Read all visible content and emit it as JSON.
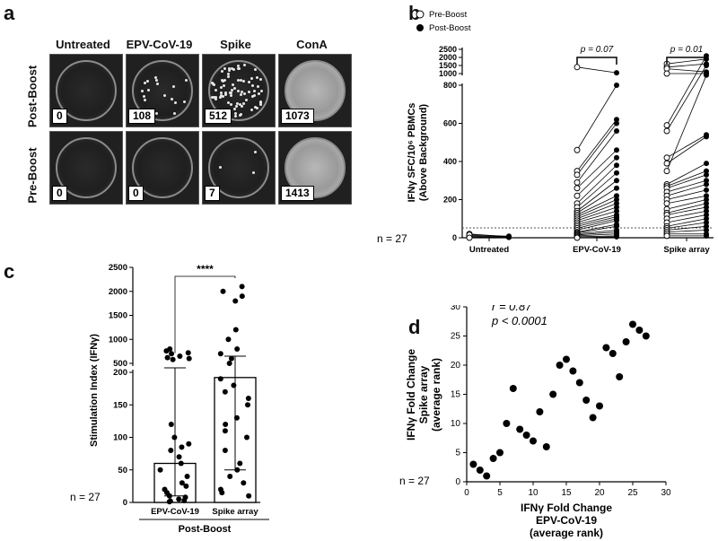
{
  "panel_labels": {
    "a": "a",
    "b": "b",
    "c": "c",
    "d": "d"
  },
  "panel_a": {
    "columns": [
      "Untreated",
      "EPV-CoV-19",
      "Spike",
      "ConA"
    ],
    "rows": [
      "Post-Boost",
      "Pre-Boost"
    ],
    "counts": [
      [
        "0",
        "108",
        "512",
        "1073"
      ],
      [
        "0",
        "0",
        "7",
        "1413"
      ]
    ],
    "spot_density": [
      [
        0,
        0.12,
        0.55,
        1.0
      ],
      [
        0,
        0,
        0.02,
        1.0
      ]
    ]
  },
  "chart_data": [
    {
      "panel": "b",
      "type": "line",
      "ylabel": "IFNγ SFC/10⁶ PBMCs (Above Background)",
      "legend": [
        "Pre-Boost",
        "Post-Boost"
      ],
      "legend_position": "top-left",
      "categories": [
        "Untreated",
        "EPV-CoV-19",
        "Spike array"
      ],
      "yticks_lower": [
        "0",
        "200",
        "400",
        "600",
        "800"
      ],
      "yticks_upper": [
        "1000",
        "1500",
        "2000",
        "2500"
      ],
      "annotations": [
        {
          "between": "EPV-CoV-19",
          "text": "p = 0.07"
        },
        {
          "between": "Spike array",
          "text": "p = 0.01"
        }
      ],
      "n_label": "n = 27",
      "untreated_pairs": [
        [
          20,
          5
        ],
        [
          10,
          5
        ],
        [
          5,
          3
        ],
        [
          15,
          8
        ],
        [
          0,
          2
        ]
      ],
      "epv_pairs": [
        [
          1400,
          1050
        ],
        [
          460,
          800
        ],
        [
          350,
          620
        ],
        [
          330,
          600
        ],
        [
          290,
          560
        ],
        [
          260,
          460
        ],
        [
          220,
          420
        ],
        [
          180,
          380
        ],
        [
          160,
          340
        ],
        [
          140,
          300
        ],
        [
          130,
          260
        ],
        [
          120,
          220
        ],
        [
          110,
          200
        ],
        [
          100,
          180
        ],
        [
          90,
          160
        ],
        [
          80,
          140
        ],
        [
          70,
          120
        ],
        [
          60,
          110
        ],
        [
          50,
          100
        ],
        [
          40,
          90
        ],
        [
          30,
          70
        ],
        [
          25,
          60
        ],
        [
          20,
          40
        ],
        [
          15,
          30
        ],
        [
          10,
          20
        ],
        [
          5,
          10
        ],
        [
          0,
          5
        ]
      ],
      "spike_pairs": [
        [
          1600,
          1900
        ],
        [
          1400,
          1600
        ],
        [
          1300,
          1100
        ],
        [
          1000,
          1000
        ],
        [
          590,
          2100
        ],
        [
          560,
          1500
        ],
        [
          420,
          540
        ],
        [
          390,
          530
        ],
        [
          350,
          900
        ],
        [
          280,
          390
        ],
        [
          270,
          350
        ],
        [
          260,
          330
        ],
        [
          240,
          300
        ],
        [
          220,
          280
        ],
        [
          200,
          250
        ],
        [
          180,
          220
        ],
        [
          150,
          200
        ],
        [
          130,
          180
        ],
        [
          120,
          160
        ],
        [
          100,
          140
        ],
        [
          80,
          120
        ],
        [
          60,
          100
        ],
        [
          50,
          80
        ],
        [
          40,
          60
        ],
        [
          30,
          40
        ],
        [
          20,
          20
        ],
        [
          10,
          10
        ]
      ]
    },
    {
      "panel": "c",
      "type": "bar",
      "ylabel": "Stimulation Index (IFNγ)",
      "categories": [
        "EPV-CoV-19",
        "Spike array"
      ],
      "group_label": "Post-Boost",
      "values": [
        60,
        192
      ],
      "yticks_lower": [
        "0",
        "50",
        "100",
        "150",
        "200"
      ],
      "yticks_upper": [
        "500",
        "1000",
        "1500",
        "2000",
        "2500"
      ],
      "significance": "****",
      "n_label": "n = 27",
      "points_epv": [
        800,
        760,
        720,
        700,
        650,
        620,
        600,
        580,
        120,
        100,
        90,
        85,
        80,
        70,
        60,
        50,
        40,
        30,
        25,
        20,
        15,
        10,
        8,
        5,
        3,
        2,
        1
      ],
      "points_spike": [
        2100,
        2000,
        1900,
        1800,
        1200,
        1000,
        800,
        700,
        600,
        500,
        190,
        180,
        170,
        160,
        150,
        130,
        120,
        110,
        100,
        80,
        60,
        50,
        40,
        30,
        20,
        15,
        10
      ],
      "err_epv": [
        10,
        220
      ],
      "err_spike": [
        50,
        650
      ]
    },
    {
      "panel": "d",
      "type": "scatter",
      "xlabel": "IFNγ Fold Change EPV-CoV-19 (average rank)",
      "xlabel_lines": [
        "IFNγ Fold Change",
        "EPV-CoV-19",
        "(average rank)"
      ],
      "ylabel_lines": [
        "IFNγ Fold Change",
        "Spike array",
        "(average rank)"
      ],
      "xlim": [
        0,
        30
      ],
      "ylim": [
        0,
        30
      ],
      "xticks": [
        "0",
        "5",
        "10",
        "15",
        "20",
        "25",
        "30"
      ],
      "yticks": [
        "0",
        "5",
        "10",
        "15",
        "20",
        "25",
        "30"
      ],
      "stat_r": "r = 0.87",
      "stat_p": "p < 0.0001",
      "n_label": "n = 27",
      "points": [
        [
          1,
          3
        ],
        [
          2,
          2
        ],
        [
          3,
          1
        ],
        [
          4,
          4
        ],
        [
          5,
          5
        ],
        [
          6,
          10
        ],
        [
          7,
          16
        ],
        [
          8,
          9
        ],
        [
          9,
          8
        ],
        [
          10,
          7
        ],
        [
          11,
          12
        ],
        [
          12,
          6
        ],
        [
          13,
          15
        ],
        [
          14,
          20
        ],
        [
          15,
          21
        ],
        [
          16,
          19
        ],
        [
          17,
          17
        ],
        [
          18,
          14
        ],
        [
          19,
          11
        ],
        [
          20,
          13
        ],
        [
          21,
          23
        ],
        [
          22,
          22
        ],
        [
          23,
          18
        ],
        [
          24,
          24
        ],
        [
          25,
          27
        ],
        [
          26,
          26
        ],
        [
          27,
          25
        ]
      ]
    }
  ]
}
